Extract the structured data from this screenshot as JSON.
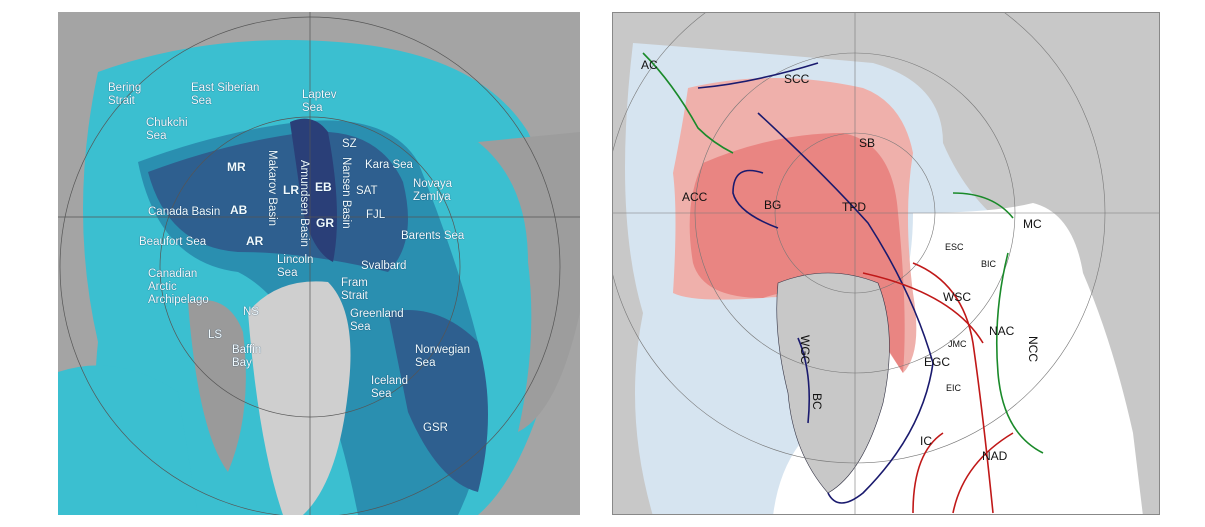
{
  "left_map": {
    "labels": {
      "bering_strait": "Bering Strait",
      "east_siberian_sea": "East Siberian Sea",
      "laptev_sea": "Laptev Sea",
      "chukchi_sea": "Chukchi Sea",
      "sz": "SZ",
      "mr": "MR",
      "makarov_basin": "Makarov Basin",
      "amundsen_basin": "Amundsen Basin",
      "nansen_basin": "Nansen Basin",
      "kara_sea": "Kara Sea",
      "lr": "LR",
      "eb": "EB",
      "sat": "SAT",
      "novaya_zemlya": "Novaya Zemlya",
      "canada_basin": "Canada Basin",
      "ab": "AB",
      "gr": "GR",
      "fjl": "FJL",
      "beaufort_sea": "Beaufort Sea",
      "ar": "AR",
      "barents_sea": "Barents Sea",
      "lincoln_sea": "Lincoln Sea",
      "svalbard": "Svalbard",
      "fram_strait": "Fram Strait",
      "canadian_arctic_archipelago": "Canadian Arctic Archipelago",
      "ns": "NS",
      "ls": "LS",
      "greenland_sea": "Greenland Sea",
      "baffin_bay": "Baffin Bay",
      "norwegian_sea": "Norwegian Sea",
      "iceland_sea": "Iceland Sea",
      "gsr": "GSR"
    },
    "colors": {
      "land": "#a9a9a9",
      "shelf": "#3bbfd0",
      "slope": "#2a8fb0",
      "basin": "#2e5f8f",
      "deep": "#2a3f78"
    }
  },
  "right_map": {
    "labels": {
      "ac": "AC",
      "scc": "SCC",
      "sb": "SB",
      "acc": "ACC",
      "bg": "BG",
      "tpd": "TPD",
      "mc": "MC",
      "esc": "ESC",
      "bic": "BIC",
      "wsc": "WSC",
      "nac": "NAC",
      "ncc": "NCC",
      "jmc": "JMC",
      "egc": "EGC",
      "eic": "EIC",
      "wgc": "WGC",
      "bc": "BC",
      "ic": "IC",
      "nad": "NAD"
    },
    "colors": {
      "land": "#c8c8c8",
      "shelf_water": "#d6e4f0",
      "atlantic_water": "#ffffff",
      "ice_dark": "#e98582",
      "ice_light": "#efb0ab",
      "arctic_current": "#1a1a6e",
      "atlantic_current": "#c01818",
      "pacific_coastal_current": "#1a8a2a"
    }
  }
}
